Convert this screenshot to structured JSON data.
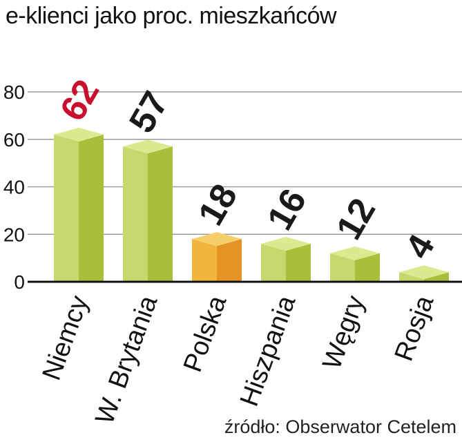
{
  "title": "e-klienci jako proc. mieszkańców",
  "source": "źródło: Obserwator Cetelem",
  "colors": {
    "bar_front": "#c5d86d",
    "bar_side": "#a9bf3c",
    "bar_top": "#dce98f",
    "highlight_front": "#f2b53e",
    "highlight_side": "#e39224",
    "highlight_top": "#f7cf6a",
    "highlight_label": "#c8102e",
    "label": "#1a1a1a",
    "grid": "#9a9a9a"
  },
  "chart_data": {
    "type": "bar",
    "title": "e-klienci jako proc. mieszkańców",
    "categories": [
      "Niemcy",
      "W. Brytania",
      "Polska",
      "Hiszpania",
      "Węgry",
      "Rosja"
    ],
    "values": [
      62,
      57,
      18,
      16,
      12,
      4
    ],
    "value_labels": [
      "62",
      "57",
      "18",
      "16",
      "12",
      "4"
    ],
    "highlight_category": "Polska",
    "highlight_label_category": "Niemcy",
    "xlabel": "",
    "ylabel": "",
    "ylim": [
      0,
      80
    ],
    "yticks": [
      0,
      20,
      40,
      60,
      80
    ],
    "ytick_labels": [
      "0",
      "20",
      "40",
      "60",
      "80"
    ],
    "grid": true,
    "legend": "none"
  }
}
